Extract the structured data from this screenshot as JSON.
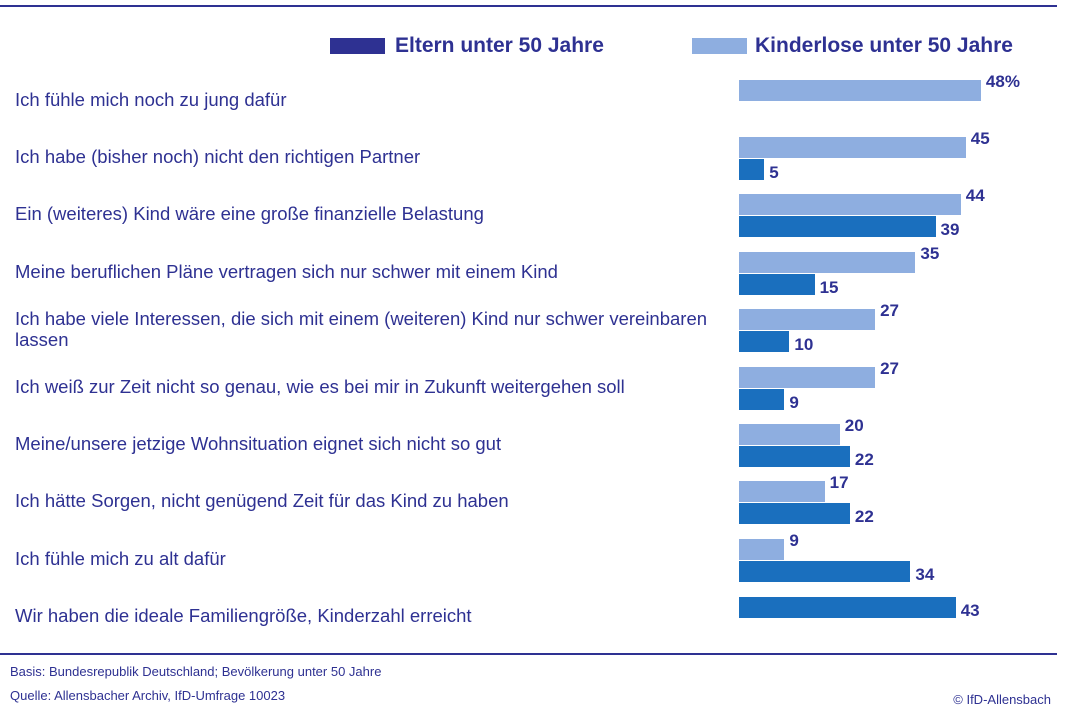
{
  "chart_data": {
    "type": "bar",
    "orientation": "horizontal",
    "categories": [
      "Ich fühle mich noch zu jung dafür",
      "Ich habe (bisher noch) nicht den richtigen Partner",
      "Ein (weiteres) Kind wäre eine große finanzielle Belastung",
      "Meine beruflichen Pläne vertragen sich nur schwer mit einem Kind",
      "Ich habe viele Interessen, die sich mit einem (weiteren) Kind nur schwer vereinbaren lassen",
      "Ich weiß zur Zeit nicht so genau, wie es bei mir in Zukunft weitergehen soll",
      "Meine/unsere jetzige Wohnsituation eignet sich nicht so gut",
      "Ich hätte Sorgen, nicht genügend Zeit für das Kind zu haben",
      "Ich fühle mich zu alt dafür",
      "Wir haben die ideale Familiengröße, Kinderzahl erreicht"
    ],
    "series": [
      {
        "name": "Eltern unter 50 Jahre",
        "color": "#1a6fbe",
        "legend_color": "#2e3192",
        "values": [
          null,
          5,
          39,
          15,
          10,
          9,
          22,
          22,
          34,
          43
        ]
      },
      {
        "name": "Kinderlose unter 50 Jahre",
        "color": "#8eaee0",
        "legend_color": "#8eaee0",
        "values": [
          48,
          45,
          44,
          35,
          27,
          27,
          20,
          17,
          9,
          null
        ],
        "value_labels": [
          "48%",
          "45",
          "44",
          "35",
          "27",
          "27",
          "20",
          "17",
          "9",
          null
        ]
      }
    ],
    "footnotes": [
      "Basis: Bundesrepublik Deutschland; Bevölkerung unter 50 Jahre",
      "Quelle: Allensbacher Archiv, IfD-Umfrage 10023"
    ],
    "credit": "© IfD-Allensbach"
  }
}
